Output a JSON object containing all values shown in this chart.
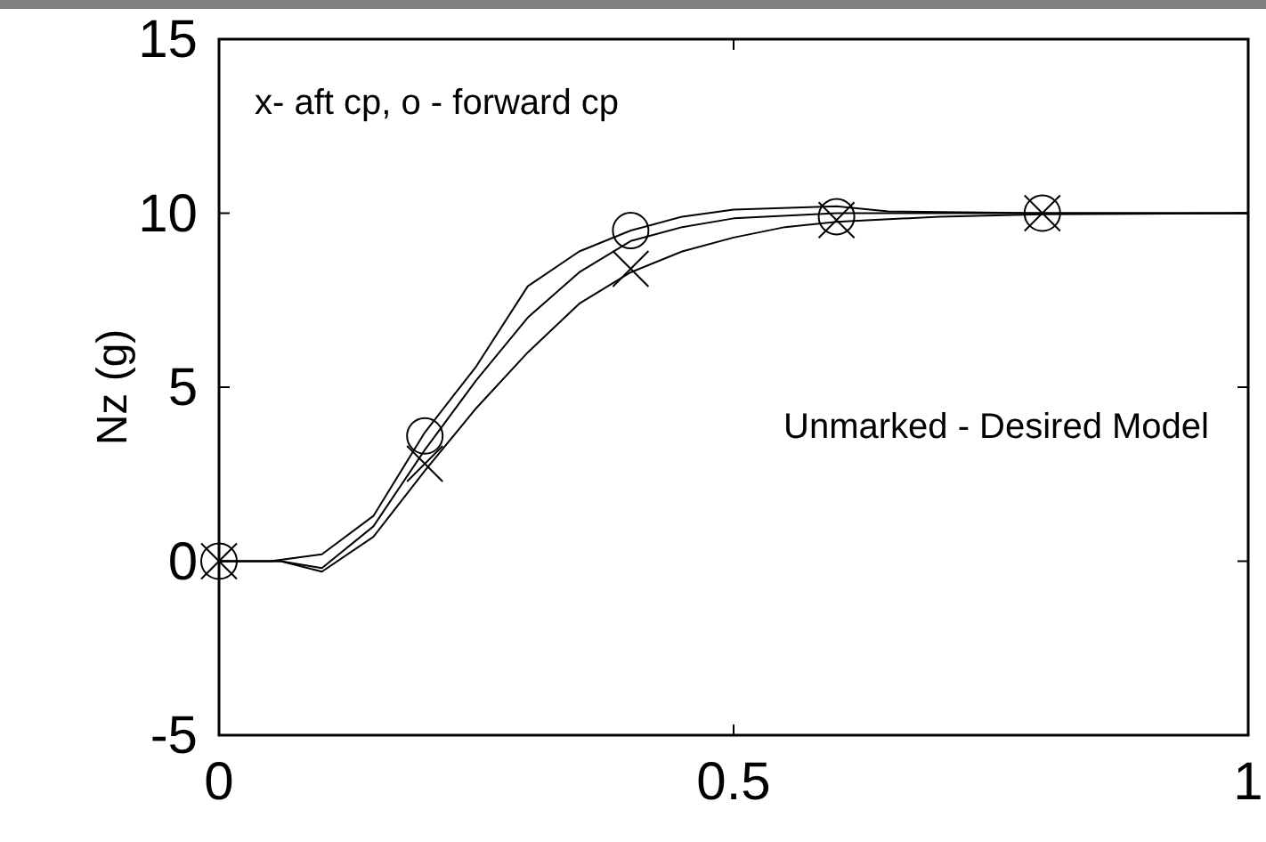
{
  "chart_data": {
    "type": "line",
    "ylabel": "Nz (g)",
    "xlim": [
      0,
      1
    ],
    "ylim": [
      -5,
      15
    ],
    "xticks": [
      0,
      0.5,
      1
    ],
    "yticks": [
      -5,
      0,
      5,
      10,
      15
    ],
    "grid": false,
    "annotations": [
      "x- aft cp, o - forward cp",
      "Unmarked - Desired Model"
    ],
    "series": [
      {
        "color": "#000000",
        "marker": "none",
        "x": [
          0,
          0.05,
          0.1,
          0.15,
          0.2,
          0.25,
          0.3,
          0.35,
          0.4,
          0.45,
          0.5,
          0.6,
          0.65,
          0.8,
          1
        ],
        "values": [
          0,
          0,
          0.2,
          1.3,
          3.7,
          5.6,
          7.9,
          8.9,
          9.5,
          9.9,
          10.1,
          10.2,
          10.05,
          10,
          10
        ]
      },
      {
        "color": "#000000",
        "marker": "none",
        "x": [
          0,
          0.06,
          0.1,
          0.15,
          0.2,
          0.25,
          0.3,
          0.35,
          0.4,
          0.45,
          0.5,
          0.6,
          0.8,
          1
        ],
        "values": [
          0,
          0,
          -0.2,
          1,
          3.2,
          5.2,
          7,
          8.3,
          9.2,
          9.6,
          9.85,
          10,
          10,
          10
        ]
      },
      {
        "color": "#000000",
        "marker": "none",
        "x": [
          0,
          0.06,
          0.1,
          0.15,
          0.2,
          0.25,
          0.3,
          0.35,
          0.4,
          0.45,
          0.5,
          0.55,
          0.6,
          0.7,
          0.8,
          1
        ],
        "values": [
          0,
          0,
          -0.3,
          0.7,
          2.6,
          4.4,
          6,
          7.4,
          8.3,
          8.9,
          9.3,
          9.6,
          9.75,
          9.9,
          9.97,
          10
        ]
      },
      {
        "type": "scatter",
        "color": "#000000",
        "marker": "circle",
        "x": [
          0,
          0.2,
          0.4,
          0.6,
          0.8
        ],
        "values": [
          0,
          3.6,
          9.5,
          9.9,
          10
        ]
      },
      {
        "type": "scatter",
        "color": "#000000",
        "marker": "cross",
        "x": [
          0,
          0.2,
          0.4,
          0.6,
          0.8
        ],
        "values": [
          0,
          2.8,
          8.4,
          9.8,
          10
        ]
      }
    ]
  }
}
